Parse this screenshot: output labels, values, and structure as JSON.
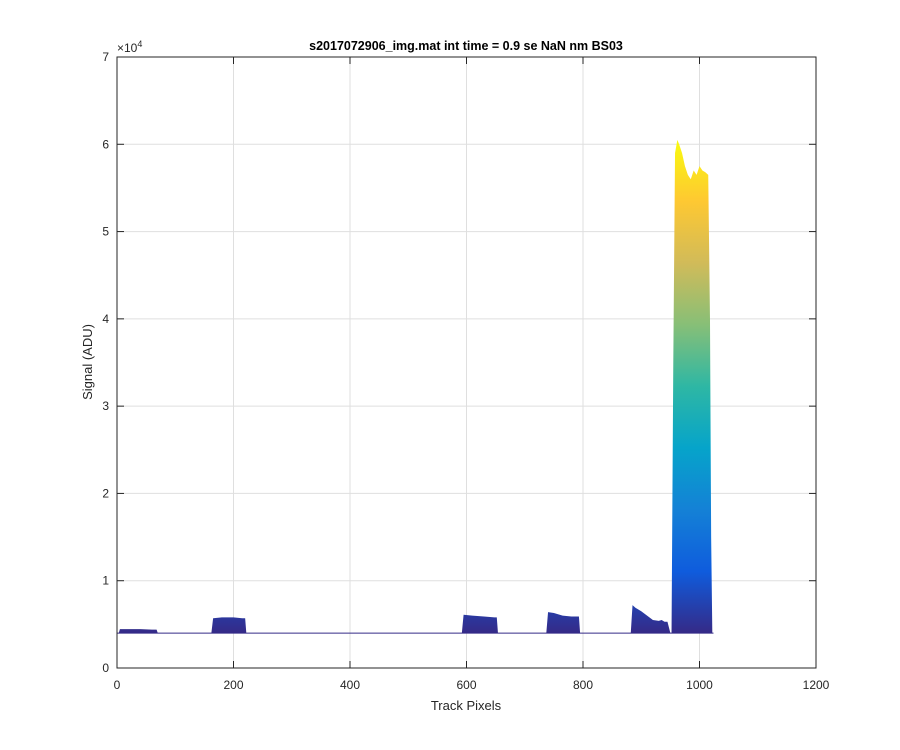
{
  "chart_data": {
    "type": "area",
    "title": "s2017072906_img.mat int time = 0.9 se  NaN nm BS03",
    "xlabel": "Track Pixels",
    "ylabel": "Signal (ADU)",
    "y_exponent_label": "×10",
    "y_exponent_power": "4",
    "xlim": [
      0,
      1200
    ],
    "ylim": [
      0,
      70000
    ],
    "xticks": [
      0,
      200,
      400,
      600,
      800,
      1000,
      1200
    ],
    "yticks": [
      0,
      10000,
      20000,
      30000,
      40000,
      50000,
      60000,
      70000
    ],
    "xtick_labels": [
      "0",
      "200",
      "400",
      "600",
      "800",
      "1000",
      "1200"
    ],
    "ytick_labels": [
      "0",
      "1",
      "2",
      "3",
      "4",
      "5",
      "6",
      "7"
    ],
    "grid": true,
    "colormap": "parula",
    "colormap_stops": [
      "#352A87",
      "#0F5CDD",
      "#1481D6",
      "#06A4CA",
      "#2EB7A4",
      "#87BF77",
      "#D1BB59",
      "#FEC832",
      "#F9FB0E"
    ],
    "baseline": 4000,
    "series": [
      {
        "x": [
          0,
          3,
          5,
          20,
          40,
          60,
          68,
          70,
          72,
          160,
          162,
          165,
          180,
          200,
          215,
          220,
          222,
          224,
          590,
          592,
          595,
          610,
          630,
          648,
          652,
          654,
          656,
          735,
          737,
          740,
          750,
          765,
          780,
          790,
          793,
          795,
          880,
          882,
          885,
          890,
          900,
          910,
          920,
          930,
          935,
          940,
          945,
          950,
          952,
          955,
          958,
          962,
          965,
          970,
          975,
          980,
          985,
          990,
          995,
          1000,
          1005,
          1010,
          1015,
          1018,
          1020,
          1022,
          1024
        ],
        "y": [
          4000,
          4000,
          4450,
          4450,
          4450,
          4400,
          4400,
          4000,
          4000,
          4000,
          4000,
          5700,
          5800,
          5800,
          5700,
          5700,
          4000,
          4000,
          4000,
          4000,
          6100,
          6000,
          5900,
          5800,
          5800,
          4000,
          4000,
          4000,
          4000,
          6400,
          6300,
          6000,
          5900,
          5900,
          5900,
          4000,
          4000,
          4000,
          7200,
          6900,
          6500,
          6000,
          5500,
          5400,
          5500,
          5300,
          5300,
          4000,
          4000,
          35000,
          59000,
          60500,
          60000,
          59000,
          57500,
          56500,
          56000,
          57000,
          56500,
          57500,
          57000,
          56800,
          56500,
          40000,
          15000,
          4000,
          4000
        ]
      }
    ]
  }
}
